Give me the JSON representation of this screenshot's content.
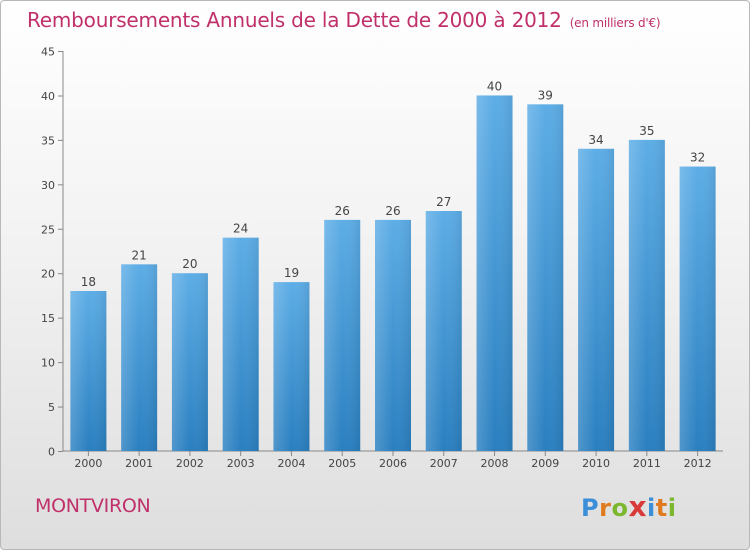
{
  "title": "Remboursements Annuels de la Dette de 2000 à 2012",
  "subtitle": "(en milliers d'€)",
  "commune": "MONTVIRON",
  "logo": {
    "letters": [
      "P",
      "r",
      "o",
      "x",
      "i",
      "t",
      "i"
    ],
    "colors": [
      "#3a8fd8",
      "#e07a1f",
      "#7cb82f",
      "#d83a3a",
      "#3a8fd8",
      "#e07a1f",
      "#7cb82f"
    ]
  },
  "colors": {
    "bar_top": "#5dade6",
    "bar_bottom": "#2a7fc0",
    "title": "#c0306a"
  },
  "chart_data": {
    "type": "bar",
    "categories": [
      "2000",
      "2001",
      "2002",
      "2003",
      "2004",
      "2005",
      "2006",
      "2007",
      "2008",
      "2009",
      "2010",
      "2011",
      "2012"
    ],
    "values": [
      18,
      21,
      20,
      24,
      19,
      26,
      26,
      27,
      40,
      39,
      34,
      35,
      32
    ],
    "yticks": [
      0,
      5,
      10,
      15,
      20,
      25,
      30,
      35,
      40,
      45
    ],
    "ylim": [
      0,
      45
    ],
    "grid": false,
    "legend": "none"
  }
}
